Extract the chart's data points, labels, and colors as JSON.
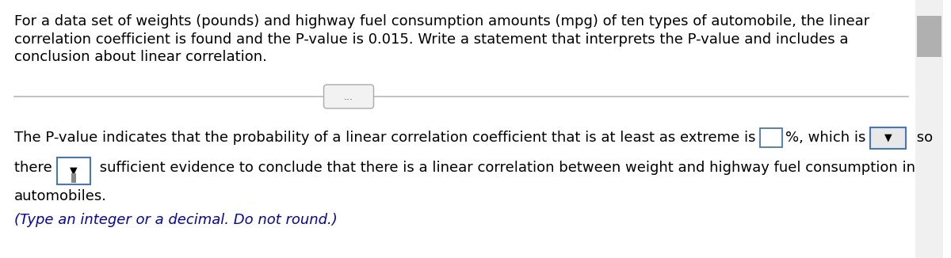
{
  "background_color": "#ffffff",
  "top_text_line1": "For a data set of weights (pounds) and highway fuel consumption amounts (mpg) of ten types of automobile, the linear",
  "top_text_line2": "correlation coefficient is found and the P-value is 0.015. Write a statement that interprets the P-value and includes a",
  "top_text_line3": "conclusion about linear correlation.",
  "divider_dots": "...",
  "main_line1_part1": "The P-value indicates that the probability of a linear correlation coefficient that is at least as extreme is ",
  "main_line1_part2": "%, which is ",
  "main_line1_part3": " so",
  "main_line2_part1": "there ",
  "main_line2_part2": " sufficient evidence to conclude that there is a linear correlation between weight and highway fuel consumption in",
  "main_line3": "automobiles.",
  "hint_text": "(Type an integer or a decimal. Do not round.)",
  "text_color": "#000000",
  "hint_color": "#0000cc",
  "input_box_color": "#ffffff",
  "input_border_color": "#4477bb",
  "dropdown_bg_color": "#e8e8e8",
  "dropdown_border_color": "#4477bb",
  "scrollbar_color": "#c0c0c0",
  "divider_color": "#b0b8cc",
  "font_size": 13.0
}
